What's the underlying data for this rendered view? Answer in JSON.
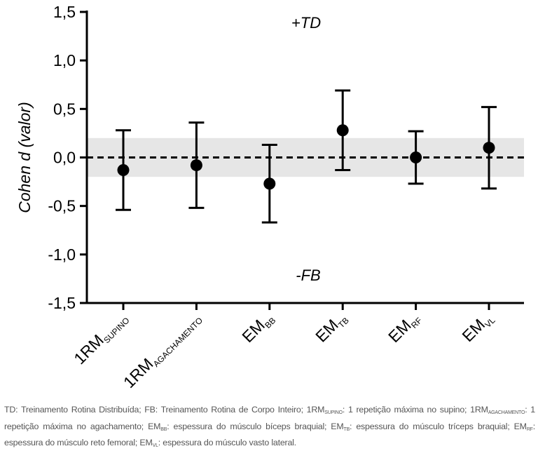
{
  "chart_data": {
    "type": "scatter",
    "subtype": "forest-plot",
    "ylabel": "Cohen d (valor)",
    "ylim": [
      -1.5,
      1.5
    ],
    "yticks": [
      "1,5",
      "1,0",
      "0,5",
      "0,0",
      "-0,5",
      "-1,0",
      "-1,5"
    ],
    "ytick_values": [
      1.5,
      1.0,
      0.5,
      0.0,
      -0.5,
      -1.0,
      -1.5
    ],
    "reference_line": 0,
    "shaded_band": [
      -0.2,
      0.2
    ],
    "annotations": {
      "top": "+TD",
      "bottom": "-FB"
    },
    "categories": [
      {
        "main": "1RM",
        "sub": "SUPINO"
      },
      {
        "main": "1RM",
        "sub": "AGACHAMENTO"
      },
      {
        "main": "EM",
        "sub": "BB"
      },
      {
        "main": "EM",
        "sub": "TB"
      },
      {
        "main": "EM",
        "sub": "RF"
      },
      {
        "main": "EM",
        "sub": "VL"
      }
    ],
    "values": [
      -0.13,
      -0.08,
      -0.27,
      0.28,
      0.0,
      0.1
    ],
    "ci_lower": [
      -0.54,
      -0.52,
      -0.67,
      -0.13,
      -0.27,
      -0.32
    ],
    "ci_upper": [
      0.28,
      0.36,
      0.13,
      0.69,
      0.27,
      0.52
    ],
    "colors": {
      "marks": "#000000",
      "band": "#e6e6e6"
    }
  },
  "caption": [
    {
      "t": "TD: Treinamento Rotina Distribuída; FB: Treinamento Rotina de Corpo Inteiro; 1RM"
    },
    {
      "t": "SUPINO",
      "sub": true
    },
    {
      "t": ": 1 repetição máxima no supino; 1RM"
    },
    {
      "t": "AGACHAMENTO",
      "sub": true
    },
    {
      "t": ": 1 repetição máxima no agachamento; EM"
    },
    {
      "t": "BB",
      "sub": true
    },
    {
      "t": ": espessura do músculo bíceps braquial; EM"
    },
    {
      "t": "TB",
      "sub": true
    },
    {
      "t": ": espessura do músculo tríceps braquial; EM"
    },
    {
      "t": "RF",
      "sub": true
    },
    {
      "t": ": espessura do músculo reto femoral; EM"
    },
    {
      "t": "VL",
      "sub": true
    },
    {
      "t": ": espessura do músculo vasto lateral."
    }
  ]
}
